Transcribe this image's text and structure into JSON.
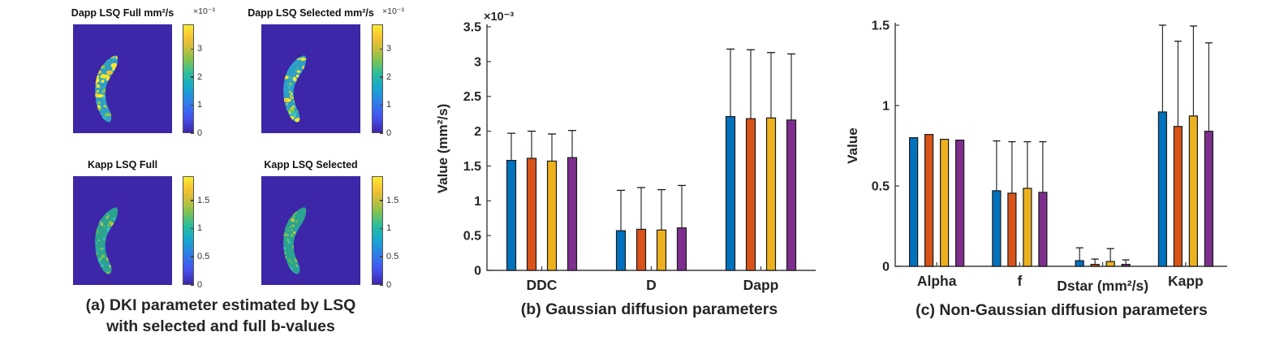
{
  "panel_a": {
    "caption_line1": "(a) DKI parameter estimated by LSQ",
    "caption_line2": "with selected and full b-values",
    "maps": [
      {
        "title": "Dapp LSQ Full mm²/s",
        "colorbar": {
          "exponent": "×10⁻³",
          "tick_values": [
            3,
            2,
            1,
            0
          ],
          "max": 3.9
        },
        "map_colors": {
          "background": "#3D26A8",
          "region_base": "#2E9FC6",
          "speckles": [
            "#F6E62E",
            "#F6E62E",
            "#F2C52B",
            "#86C643",
            "#3ABFC0"
          ]
        }
      },
      {
        "title": "Dapp LSQ Selected mm²/s",
        "colorbar": {
          "exponent": "×10⁻³",
          "tick_values": [
            3,
            2,
            1,
            0
          ],
          "max": 3.9
        },
        "map_colors": {
          "background": "#3D26A8",
          "region_base": "#2E9FC6",
          "speckles": [
            "#F6E62E",
            "#F6E62E",
            "#F2C52B",
            "#86C643",
            "#3ABFC0"
          ]
        }
      },
      {
        "title": "Kapp LSQ Full",
        "colorbar": {
          "exponent": null,
          "tick_values": [
            1.5,
            1,
            0.5,
            0
          ],
          "max": 1.94
        },
        "map_colors": {
          "background": "#3D26A8",
          "region_base": "#2AA38F",
          "speckles": [
            "#55B766",
            "#86C643",
            "#2E9FC6",
            "#CFC93C",
            "#3ABFC0"
          ]
        }
      },
      {
        "title": "Kapp LSQ Selected",
        "colorbar": {
          "exponent": null,
          "tick_values": [
            1.5,
            1,
            0.5,
            0
          ],
          "max": 1.94
        },
        "map_colors": {
          "background": "#3D26A8",
          "region_base": "#2AA38F",
          "speckles": [
            "#55B766",
            "#86C643",
            "#2E9FC6",
            "#CFC93C",
            "#3ABFC0"
          ]
        }
      }
    ]
  },
  "chart_data": [
    {
      "id": "b",
      "type": "bar",
      "title": "(b) Gaussian diffusion parameters",
      "ylabel": "Value (mm²/s)",
      "y_exponent": "×10⁻³",
      "ylim": [
        0,
        3.5
      ],
      "yticks": [
        0,
        0.5,
        1,
        1.5,
        2,
        2.5,
        3,
        3.5
      ],
      "categories": [
        "DDC",
        "D",
        "Dapp"
      ],
      "series": [
        {
          "color": "#0072BD",
          "values": [
            1.58,
            0.57,
            2.21
          ],
          "err_upper": [
            0.39,
            0.58,
            0.97
          ]
        },
        {
          "color": "#D95319",
          "values": [
            1.61,
            0.59,
            2.18
          ],
          "err_upper": [
            0.39,
            0.6,
            0.99
          ]
        },
        {
          "color": "#EDB120",
          "values": [
            1.57,
            0.58,
            2.19
          ],
          "err_upper": [
            0.39,
            0.58,
            0.94
          ]
        },
        {
          "color": "#7E2F8E",
          "values": [
            1.62,
            0.61,
            2.16
          ],
          "err_upper": [
            0.39,
            0.61,
            0.95
          ]
        }
      ],
      "bar_outline": "#1a1a1a",
      "grid": false,
      "legend": null
    },
    {
      "id": "c",
      "type": "bar",
      "title": "(c) Non-Gaussian diffusion parameters",
      "ylabel": "Value",
      "y_exponent": null,
      "ylim": [
        0,
        1.5
      ],
      "yticks": [
        0,
        0.5,
        1,
        1.5
      ],
      "categories": [
        "Alpha",
        "f",
        "Dstar (mm²/s)",
        "Kapp"
      ],
      "series": [
        {
          "color": "#0072BD",
          "values": [
            0.8,
            0.47,
            0.035,
            0.96
          ],
          "err_upper": [
            0,
            0.31,
            0.08,
            0.54
          ]
        },
        {
          "color": "#D95319",
          "values": [
            0.82,
            0.455,
            0.012,
            0.87
          ],
          "err_upper": [
            0,
            0.32,
            0.033,
            0.53
          ]
        },
        {
          "color": "#EDB120",
          "values": [
            0.79,
            0.485,
            0.03,
            0.935
          ],
          "err_upper": [
            0,
            0.29,
            0.08,
            0.56
          ]
        },
        {
          "color": "#7E2F8E",
          "values": [
            0.785,
            0.46,
            0.012,
            0.84
          ],
          "err_upper": [
            0,
            0.315,
            0.028,
            0.55
          ]
        }
      ],
      "bar_outline": "#1a1a1a",
      "grid": false,
      "legend": null
    }
  ]
}
